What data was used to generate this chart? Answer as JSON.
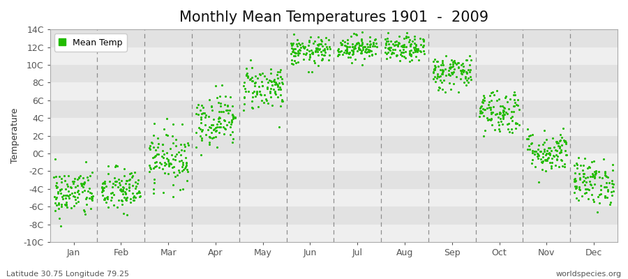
{
  "title": "Monthly Mean Temperatures 1901  -  2009",
  "ylabel": "Temperature",
  "ylim": [
    -10,
    14
  ],
  "yticks": [
    -10,
    -8,
    -6,
    -4,
    -2,
    0,
    2,
    4,
    6,
    8,
    10,
    12,
    14
  ],
  "ytick_labels": [
    "-10C",
    "-8C",
    "-6C",
    "-4C",
    "-2C",
    "0C",
    "2C",
    "4C",
    "6C",
    "8C",
    "10C",
    "12C",
    "14C"
  ],
  "months": [
    "Jan",
    "Feb",
    "Mar",
    "Apr",
    "May",
    "Jun",
    "Jul",
    "Aug",
    "Sep",
    "Oct",
    "Nov",
    "Dec"
  ],
  "dot_color": "#22BB00",
  "figure_bg": "#FFFFFF",
  "plot_bg": "#F5F5F5",
  "band_color_light": "#EFEFEF",
  "band_color_dark": "#E2E2E2",
  "vline_color": "#666666",
  "subtitle_left": "Latitude 30.75 Longitude 79.25",
  "subtitle_right": "worldspecies.org",
  "legend_label": "Mean Temp",
  "title_fontsize": 15,
  "label_fontsize": 9,
  "tick_fontsize": 9,
  "n_years": 109,
  "monthly_means": [
    -4.5,
    -4.2,
    -0.5,
    3.8,
    7.5,
    11.5,
    12.0,
    11.8,
    9.2,
    4.8,
    0.2,
    -3.2
  ],
  "monthly_stds": [
    1.4,
    1.3,
    1.6,
    1.5,
    1.3,
    0.8,
    0.7,
    0.7,
    1.0,
    1.3,
    1.2,
    1.3
  ]
}
